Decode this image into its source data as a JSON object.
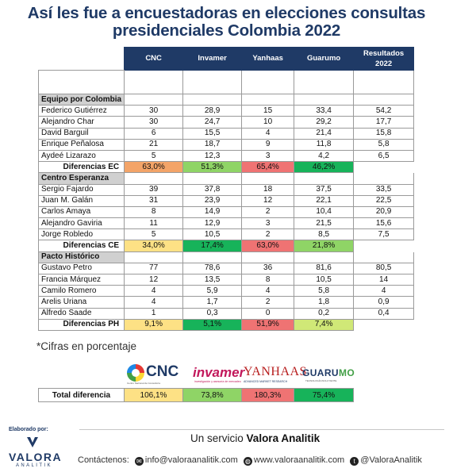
{
  "title": {
    "line1": "Así les fue a encuestadoras en elecciones consultas",
    "line2": "presidenciales Colombia 2022"
  },
  "columns": [
    "CNC",
    "Invamer",
    "Yanhaas",
    "Guarumo",
    "Resultados 2022"
  ],
  "groups": [
    {
      "name": "Equipo por Colombia",
      "rows": [
        {
          "name": "Federico Gutiérrez",
          "values": [
            "30",
            "28,9",
            "15",
            "33,4",
            "54,2"
          ]
        },
        {
          "name": "Alejandro Char",
          "values": [
            "30",
            "24,7",
            "10",
            "29,2",
            "17,7"
          ]
        },
        {
          "name": "David Barguil",
          "values": [
            "6",
            "15,5",
            "4",
            "21,4",
            "15,8"
          ]
        },
        {
          "name": "Enrique Peñalosa",
          "values": [
            "21",
            "18,7",
            "9",
            "11,8",
            "5,8"
          ]
        },
        {
          "name": "Aydeé Lizarazo",
          "values": [
            "5",
            "12,3",
            "3",
            "4,2",
            "6,5"
          ]
        }
      ],
      "diff": {
        "label": "Diferencias EC",
        "values": [
          "63,0%",
          "51,3%",
          "65,4%",
          "46,2%"
        ],
        "colors": [
          "#f3a468",
          "#8fd466",
          "#ef7373",
          "#17b35a"
        ]
      }
    },
    {
      "name": "Centro Esperanza",
      "rows": [
        {
          "name": "Sergio Fajardo",
          "values": [
            "39",
            "37,8",
            "18",
            "37,5",
            "33,5"
          ]
        },
        {
          "name": "Juan M. Galán",
          "values": [
            "31",
            "23,9",
            "12",
            "22,1",
            "22,5"
          ]
        },
        {
          "name": "Carlos Amaya",
          "values": [
            "8",
            "14,9",
            "2",
            "10,4",
            "20,9"
          ]
        },
        {
          "name": "Alejandro Gaviria",
          "values": [
            "11",
            "12,9",
            "3",
            "21,5",
            "15,6"
          ]
        },
        {
          "name": "Jorge Robledo",
          "values": [
            "5",
            "10,5",
            "2",
            "8,5",
            "7,5"
          ]
        }
      ],
      "diff": {
        "label": "Diferencias CE",
        "values": [
          "34,0%",
          "17,4%",
          "63,0%",
          "21,8%"
        ],
        "colors": [
          "#fde185",
          "#17b35a",
          "#ef7373",
          "#8fd466"
        ]
      }
    },
    {
      "name": "Pacto Histórico",
      "rows": [
        {
          "name": "Gustavo Petro",
          "values": [
            "77",
            "78,6",
            "36",
            "81,6",
            "80,5"
          ]
        },
        {
          "name": "Francia Márquez",
          "values": [
            "12",
            "13,5",
            "8",
            "10,5",
            "14"
          ]
        },
        {
          "name": "Camilo Romero",
          "values": [
            "4",
            "5,9",
            "4",
            "5,8",
            "4"
          ]
        },
        {
          "name": "Arelis Uriana",
          "values": [
            "4",
            "1,7",
            "2",
            "1,8",
            "0,9"
          ]
        },
        {
          "name": "Alfredo Saade",
          "values": [
            "1",
            "0,3",
            "0",
            "0,2",
            "0,4"
          ]
        }
      ],
      "diff": {
        "label": "Diferencias PH",
        "values": [
          "9,1%",
          "5,1%",
          "51,9%",
          "7,4%"
        ],
        "colors": [
          "#fde185",
          "#17b35a",
          "#ef7373",
          "#d0e877"
        ]
      }
    }
  ],
  "note": "*Cifras en porcentaje",
  "logos": {
    "cnc": {
      "name": "CNC",
      "sub": "Centro Nacional de Consultoría"
    },
    "invamer": {
      "name": "invamer",
      "sub": "investigación y asesoría de mercadeo"
    },
    "yanhaas": {
      "name": "YANHAAS",
      "sub": "ADVANCED MARKET RESEARCH"
    },
    "guarumo": {
      "name_a": "GUARU",
      "name_b": "MO",
      "sub": "TECNOLOGÍA INCLUYENTE"
    }
  },
  "total": {
    "label": "Total diferencia",
    "values": [
      "106,1%",
      "73,8%",
      "180,3%",
      "75,4%"
    ],
    "colors": [
      "#fde185",
      "#8fd466",
      "#ef7373",
      "#17b35a"
    ]
  },
  "footer": {
    "elaborado": "Elaborado por:",
    "brand": "VALORA",
    "brand_sub": "ANALITIK",
    "service_prefix": "Un servicio",
    "service_brand": "Valora Analitik",
    "contact_label": "Contáctenos:",
    "email": "info@valoraanalitik.com",
    "web": "www.valoraanalitik.com",
    "handle": "@ValoraAnalitik"
  }
}
